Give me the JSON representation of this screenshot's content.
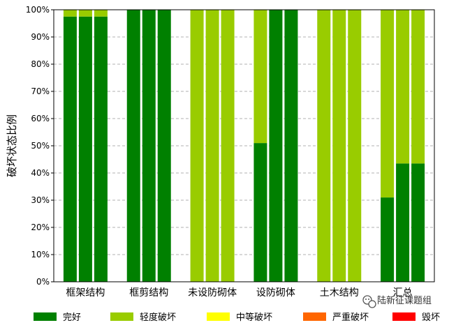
{
  "colors": {
    "完好": "#008000",
    "轻度破坏": "#99cc00",
    "中等破坏": "#ffff00",
    "严重破坏": "#ff6600",
    "毁坏": "#ff0000"
  },
  "chart_data": {
    "type": "bar",
    "stacked": true,
    "ylabel": "破坏状态比例",
    "ylim": [
      0,
      100
    ],
    "yticks": [
      "0%",
      "10%",
      "20%",
      "30%",
      "40%",
      "50%",
      "60%",
      "70%",
      "80%",
      "90%",
      "100%"
    ],
    "grid": true,
    "legend_position": "bottom",
    "bars_per_group": 3,
    "categories": [
      "框架结构",
      "框剪结构",
      "未设防砌体",
      "设防砌体",
      "土木结构",
      "汇总"
    ],
    "series": [
      {
        "name": "完好",
        "values": [
          [
            97.5,
            97.5,
            97.5
          ],
          [
            100,
            100,
            100
          ],
          [
            0,
            0,
            0
          ],
          [
            51,
            100,
            100
          ],
          [
            0,
            0,
            0
          ],
          [
            31,
            43.5,
            43.5
          ]
        ]
      },
      {
        "name": "轻度破坏",
        "values": [
          [
            2.5,
            2.5,
            2.5
          ],
          [
            0,
            0,
            0
          ],
          [
            100,
            100,
            100
          ],
          [
            49,
            0,
            0
          ],
          [
            100,
            100,
            100
          ],
          [
            69,
            56.5,
            56.5
          ]
        ]
      },
      {
        "name": "中等破坏",
        "values": [
          [
            0,
            0,
            0
          ],
          [
            0,
            0,
            0
          ],
          [
            0,
            0,
            0
          ],
          [
            0,
            0,
            0
          ],
          [
            0,
            0,
            0
          ],
          [
            0,
            0,
            0
          ]
        ]
      },
      {
        "name": "严重破坏",
        "values": [
          [
            0,
            0,
            0
          ],
          [
            0,
            0,
            0
          ],
          [
            0,
            0,
            0
          ],
          [
            0,
            0,
            0
          ],
          [
            0,
            0,
            0
          ],
          [
            0,
            0,
            0
          ]
        ]
      },
      {
        "name": "毁坏",
        "values": [
          [
            0,
            0,
            0
          ],
          [
            0,
            0,
            0
          ],
          [
            0,
            0,
            0
          ],
          [
            0,
            0,
            0
          ],
          [
            0,
            0,
            0
          ],
          [
            0,
            0,
            0
          ]
        ]
      }
    ],
    "legend": [
      "完好",
      "轻度破坏",
      "中等破坏",
      "严重破坏",
      "毁坏"
    ]
  },
  "watermark": {
    "text": "陆新征课题组",
    "icon": "wechat-icon"
  }
}
